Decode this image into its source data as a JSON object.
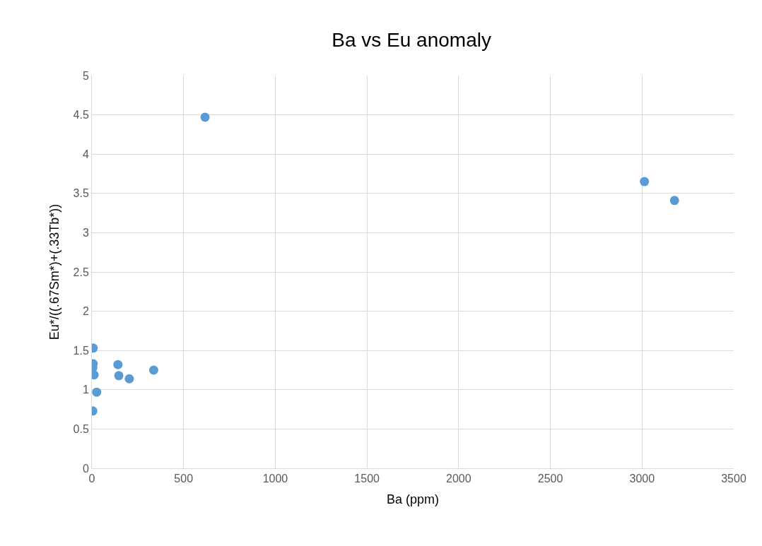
{
  "chart_data": {
    "type": "scatter",
    "title": "Ba vs Eu anomaly",
    "xlabel": "Ba (ppm)",
    "ylabel": "Eu*/((.67Sm*)+(.33Tb*))",
    "x": [
      617,
      3013,
      3177,
      7,
      7,
      5,
      12,
      142,
      147,
      204,
      337,
      26,
      5
    ],
    "values": [
      4.47,
      3.65,
      3.41,
      1.53,
      1.33,
      1.28,
      1.19,
      1.32,
      1.18,
      1.14,
      1.25,
      0.97,
      0.73
    ],
    "color": "#5b9bd5",
    "marker": "circle",
    "xlim": [
      0,
      3500
    ],
    "xticks": [
      0,
      500,
      1000,
      1500,
      2000,
      2500,
      3000,
      3500
    ],
    "ylim": [
      0,
      5
    ],
    "yticks": [
      0,
      0.5,
      1,
      1.5,
      2,
      2.5,
      3,
      3.5,
      4,
      4.5,
      5
    ],
    "grid": true,
    "legend": false
  }
}
